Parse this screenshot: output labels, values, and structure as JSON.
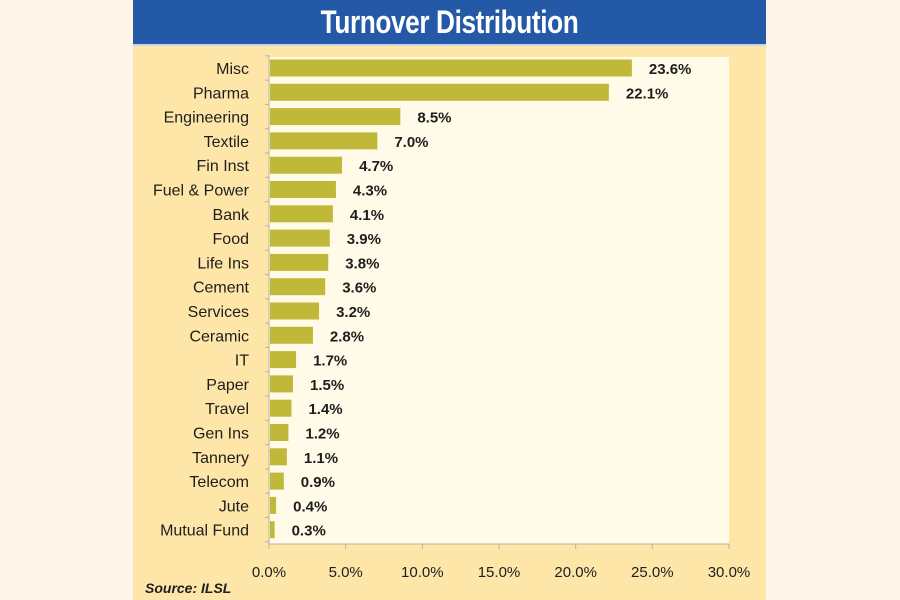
{
  "chart_data": {
    "type": "bar",
    "orientation": "horizontal",
    "title": "Turnover Distribution",
    "categories": [
      "Misc",
      "Pharma",
      "Engineering",
      "Textile",
      "Fin Inst",
      "Fuel & Power",
      "Bank",
      "Food",
      "Life Ins",
      "Cement",
      "Services",
      "Ceramic",
      "IT",
      "Paper",
      "Travel",
      "Gen Ins",
      "Tannery",
      "Telecom",
      "Jute",
      "Mutual Fund"
    ],
    "values": [
      23.6,
      22.1,
      8.5,
      7.0,
      4.7,
      4.3,
      4.1,
      3.9,
      3.8,
      3.6,
      3.2,
      2.8,
      1.7,
      1.5,
      1.4,
      1.2,
      1.1,
      0.9,
      0.4,
      0.3
    ],
    "value_labels": [
      "23.6%",
      "22.1%",
      "8.5%",
      "7.0%",
      "4.7%",
      "4.3%",
      "4.1%",
      "3.9%",
      "3.8%",
      "3.6%",
      "3.2%",
      "2.8%",
      "1.7%",
      "1.5%",
      "1.4%",
      "1.2%",
      "1.1%",
      "0.9%",
      "0.4%",
      "0.3%"
    ],
    "xlabel": "",
    "ylabel": "",
    "xlim": [
      0,
      30
    ],
    "xticks": [
      0,
      5,
      10,
      15,
      20,
      25,
      30
    ],
    "xtick_labels": [
      "0.0%",
      "5.0%",
      "10.0%",
      "15.0%",
      "20.0%",
      "25.0%",
      "30.0%"
    ],
    "grid": false,
    "legend": "none",
    "bar_color": "#bfb839",
    "source": "Source: ILSL"
  },
  "colors": {
    "title_bar": "#2359a6",
    "panel": "#fde6a8",
    "plot_bg": "#fffbe8"
  }
}
